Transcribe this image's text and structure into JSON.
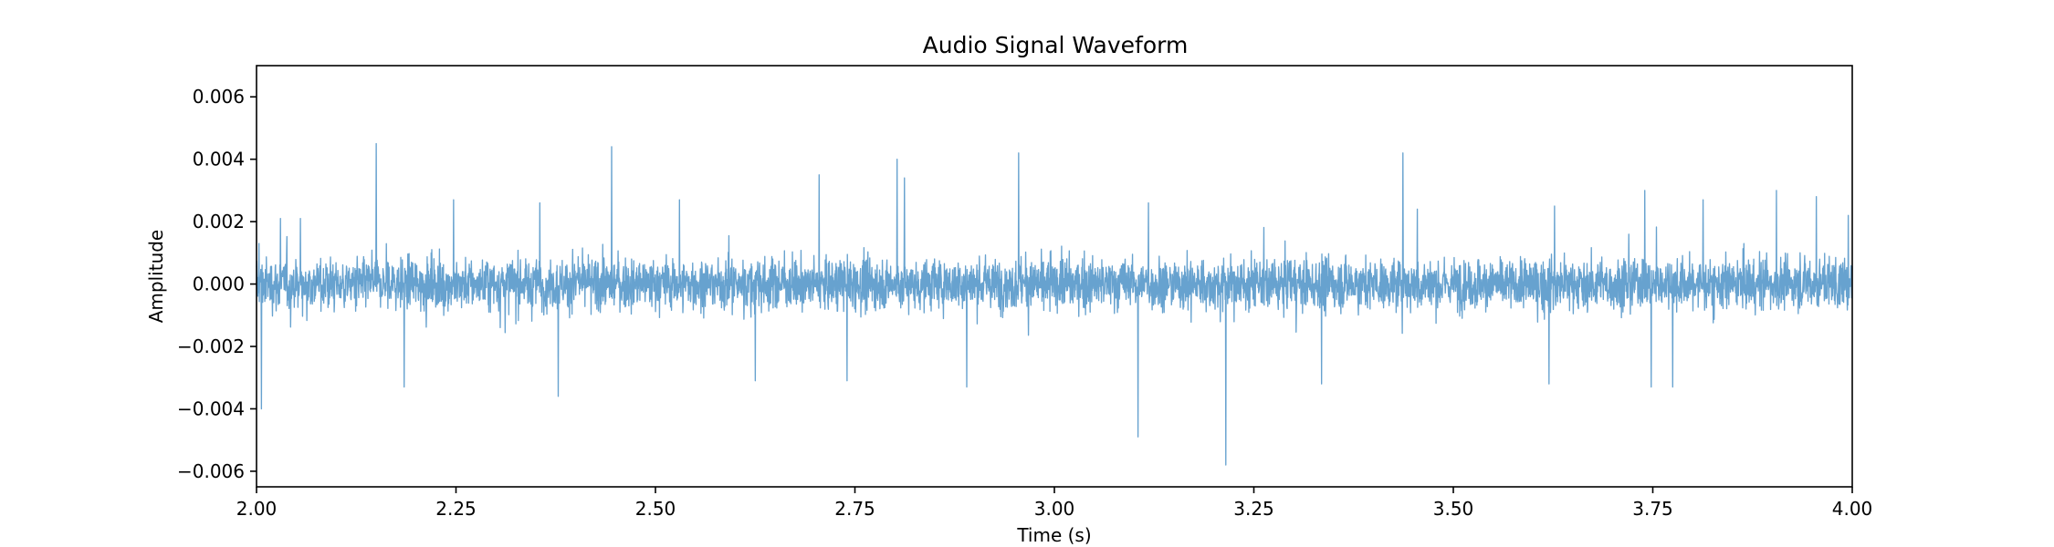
{
  "chart_data": {
    "type": "line",
    "title": "Audio Signal Waveform",
    "xlabel": "Time (s)",
    "ylabel": "Amplitude",
    "xlim": [
      2.0,
      4.0
    ],
    "ylim": [
      -0.0065,
      0.007
    ],
    "xticks": [
      2.0,
      2.25,
      2.5,
      2.75,
      3.0,
      3.25,
      3.5,
      3.75,
      4.0
    ],
    "xtick_labels": [
      "2.00",
      "2.25",
      "2.50",
      "2.75",
      "3.00",
      "3.25",
      "3.50",
      "3.75",
      "4.00"
    ],
    "yticks": [
      -0.006,
      -0.004,
      -0.002,
      0.0,
      0.002,
      0.004,
      0.006
    ],
    "ytick_labels": [
      "−0.006",
      "−0.004",
      "−0.002",
      "0.000",
      "0.002",
      "0.004",
      "0.006"
    ],
    "grid": false,
    "series": [
      {
        "color": "#5f9dcc",
        "noise_amplitude": 0.0006,
        "peaks": [
          {
            "x": 2.003,
            "y": 0.0013
          },
          {
            "x": 2.006,
            "y": -0.004
          },
          {
            "x": 2.03,
            "y": 0.0021
          },
          {
            "x": 2.055,
            "y": 0.0021
          },
          {
            "x": 2.15,
            "y": 0.0045
          },
          {
            "x": 2.185,
            "y": -0.0033
          },
          {
            "x": 2.247,
            "y": 0.0027
          },
          {
            "x": 2.355,
            "y": 0.0026
          },
          {
            "x": 2.378,
            "y": -0.0036
          },
          {
            "x": 2.445,
            "y": 0.0044
          },
          {
            "x": 2.53,
            "y": 0.0027
          },
          {
            "x": 2.625,
            "y": -0.0031
          },
          {
            "x": 2.705,
            "y": 0.0035
          },
          {
            "x": 2.74,
            "y": -0.0031
          },
          {
            "x": 2.803,
            "y": 0.004
          },
          {
            "x": 2.812,
            "y": 0.0034
          },
          {
            "x": 2.89,
            "y": -0.0033
          },
          {
            "x": 2.955,
            "y": 0.0042
          },
          {
            "x": 3.105,
            "y": -0.0049
          },
          {
            "x": 3.118,
            "y": 0.0026
          },
          {
            "x": 3.215,
            "y": -0.0058
          },
          {
            "x": 3.335,
            "y": -0.0032
          },
          {
            "x": 3.437,
            "y": 0.0042
          },
          {
            "x": 3.455,
            "y": 0.0024
          },
          {
            "x": 3.62,
            "y": -0.0032
          },
          {
            "x": 3.627,
            "y": 0.0025
          },
          {
            "x": 3.74,
            "y": 0.003
          },
          {
            "x": 3.748,
            "y": -0.0033
          },
          {
            "x": 3.775,
            "y": -0.0033
          },
          {
            "x": 3.813,
            "y": 0.0027
          },
          {
            "x": 3.905,
            "y": 0.003
          },
          {
            "x": 3.955,
            "y": 0.0028
          },
          {
            "x": 3.995,
            "y": 0.0022
          }
        ]
      }
    ]
  }
}
